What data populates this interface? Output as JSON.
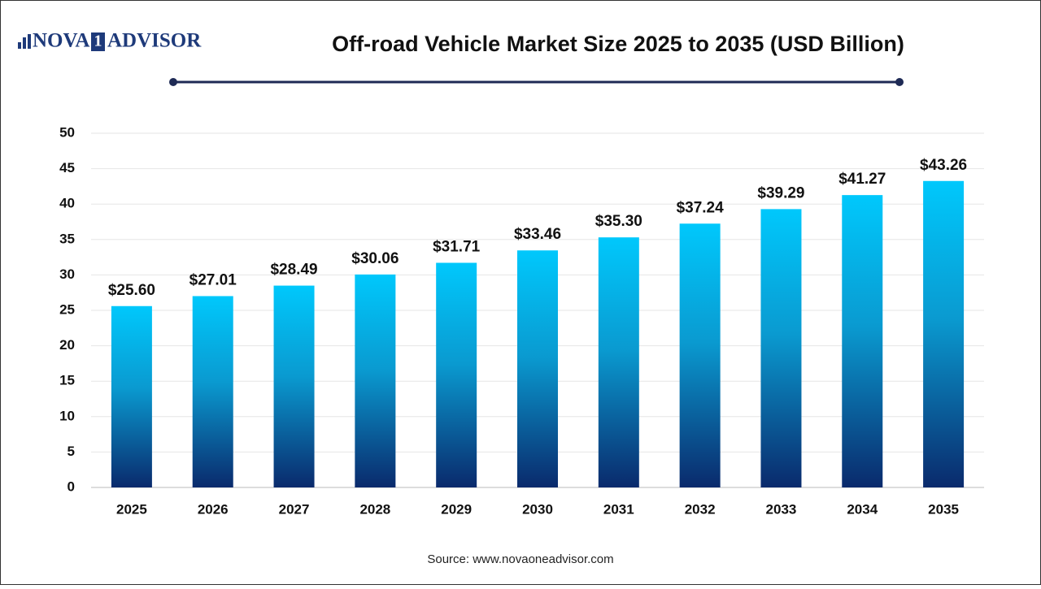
{
  "logo": {
    "left": "NOVA",
    "mark": "1",
    "right": "ADVISOR"
  },
  "chart_data": {
    "type": "bar",
    "title": "Off-road Vehicle Market Size 2025 to 2035 (USD Billion)",
    "categories": [
      "2025",
      "2026",
      "2027",
      "2028",
      "2029",
      "2030",
      "2031",
      "2032",
      "2033",
      "2034",
      "2035"
    ],
    "values": [
      25.6,
      27.01,
      28.49,
      30.06,
      31.71,
      33.46,
      35.3,
      37.24,
      39.29,
      41.27,
      43.26
    ],
    "value_labels": [
      "$25.60",
      "$27.01",
      "$28.49",
      "$30.06",
      "$31.71",
      "$33.46",
      "$35.30",
      "$37.24",
      "$39.29",
      "$41.27",
      "$43.26"
    ],
    "color": [
      "#00c8fc",
      "#0a2a6c"
    ],
    "ylim": [
      0,
      50
    ],
    "yticks": [
      0,
      5,
      10,
      15,
      20,
      25,
      30,
      35,
      40,
      45,
      50
    ],
    "grid": true,
    "source": "Source: www.novaoneadvisor.com"
  }
}
